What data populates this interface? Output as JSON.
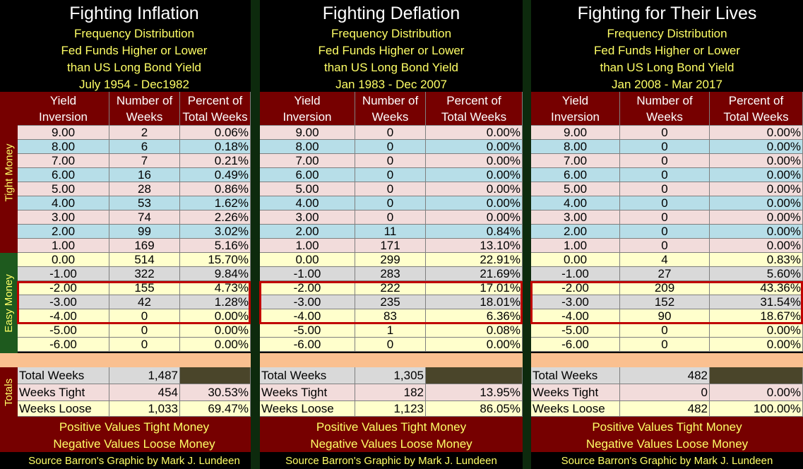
{
  "side_labels": {
    "tight": "Tight Money",
    "easy": "Easy Money",
    "totals": "Totals"
  },
  "panels": [
    {
      "title": "Fighting Inflation",
      "subtitle": [
        "Frequency Distribution",
        "Fed Funds Higher or Lower",
        "than US Long Bond Yield",
        "July 1954 - Dec1982"
      ],
      "headers": [
        [
          "Yield",
          "Inversion"
        ],
        [
          "Number of",
          "Weeks"
        ],
        [
          "Percent of",
          "Total Weeks"
        ]
      ],
      "rows": [
        [
          "9.00",
          "2",
          "0.06%"
        ],
        [
          "8.00",
          "6",
          "0.18%"
        ],
        [
          "7.00",
          "7",
          "0.21%"
        ],
        [
          "6.00",
          "16",
          "0.49%"
        ],
        [
          "5.00",
          "28",
          "0.86%"
        ],
        [
          "4.00",
          "53",
          "1.62%"
        ],
        [
          "3.00",
          "74",
          "2.26%"
        ],
        [
          "2.00",
          "99",
          "3.02%"
        ],
        [
          "1.00",
          "169",
          "5.16%"
        ],
        [
          "0.00",
          "514",
          "15.70%"
        ],
        [
          "-1.00",
          "322",
          "9.84%"
        ],
        [
          "-2.00",
          "155",
          "4.73%"
        ],
        [
          "-3.00",
          "42",
          "1.28%"
        ],
        [
          "-4.00",
          "0",
          "0.00%"
        ],
        [
          "-5.00",
          "0",
          "0.00%"
        ],
        [
          "-6.00",
          "0",
          "0.00%"
        ]
      ],
      "totals": [
        [
          "Total Weeks",
          "1,487"
        ],
        [
          "Weeks Tight",
          "454",
          "30.53%"
        ],
        [
          "Weeks Loose",
          "1,033",
          "69.47%"
        ]
      ],
      "footer": [
        "Positive Values Tight Money",
        "Negative Values Loose Money"
      ],
      "source": "Source Barron's  Graphic by Mark J. Lundeen"
    },
    {
      "title": "Fighting Deflation",
      "subtitle": [
        "Frequency Distribution",
        "Fed Funds Higher or Lower",
        "than US Long Bond Yield",
        "Jan 1983 - Dec 2007"
      ],
      "headers": [
        [
          "Yield",
          "Inversion"
        ],
        [
          "Number of",
          "Weeks"
        ],
        [
          "Percent of",
          "Total Weeks"
        ]
      ],
      "rows": [
        [
          "9.00",
          "0",
          "0.00%"
        ],
        [
          "8.00",
          "0",
          "0.00%"
        ],
        [
          "7.00",
          "0",
          "0.00%"
        ],
        [
          "6.00",
          "0",
          "0.00%"
        ],
        [
          "5.00",
          "0",
          "0.00%"
        ],
        [
          "4.00",
          "0",
          "0.00%"
        ],
        [
          "3.00",
          "0",
          "0.00%"
        ],
        [
          "2.00",
          "11",
          "0.84%"
        ],
        [
          "1.00",
          "171",
          "13.10%"
        ],
        [
          "0.00",
          "299",
          "22.91%"
        ],
        [
          "-1.00",
          "283",
          "21.69%"
        ],
        [
          "-2.00",
          "222",
          "17.01%"
        ],
        [
          "-3.00",
          "235",
          "18.01%"
        ],
        [
          "-4.00",
          "83",
          "6.36%"
        ],
        [
          "-5.00",
          "1",
          "0.08%"
        ],
        [
          "-6.00",
          "0",
          "0.00%"
        ]
      ],
      "totals": [
        [
          "Total Weeks",
          "1,305"
        ],
        [
          "Weeks Tight",
          "182",
          "13.95%"
        ],
        [
          "Weeks Loose",
          "1,123",
          "86.05%"
        ]
      ],
      "footer": [
        "Positive Values Tight Money",
        "Negative Values Loose Money"
      ],
      "source": "Source Barron's  Graphic by Mark J. Lundeen"
    },
    {
      "title": "Fighting for Their Lives",
      "subtitle": [
        "Frequency Distribution",
        "Fed Funds Higher or Lower",
        "than US Long Bond Yield",
        "Jan 2008 - Mar 2017"
      ],
      "headers": [
        [
          "Yield",
          "Inversion"
        ],
        [
          "Number of",
          "Weeks"
        ],
        [
          "Percent of",
          "Total Weeks"
        ]
      ],
      "rows": [
        [
          "9.00",
          "0",
          "0.00%"
        ],
        [
          "8.00",
          "0",
          "0.00%"
        ],
        [
          "7.00",
          "0",
          "0.00%"
        ],
        [
          "6.00",
          "0",
          "0.00%"
        ],
        [
          "5.00",
          "0",
          "0.00%"
        ],
        [
          "4.00",
          "0",
          "0.00%"
        ],
        [
          "3.00",
          "0",
          "0.00%"
        ],
        [
          "2.00",
          "0",
          "0.00%"
        ],
        [
          "1.00",
          "0",
          "0.00%"
        ],
        [
          "0.00",
          "4",
          "0.83%"
        ],
        [
          "-1.00",
          "27",
          "5.60%"
        ],
        [
          "-2.00",
          "209",
          "43.36%"
        ],
        [
          "-3.00",
          "152",
          "31.54%"
        ],
        [
          "-4.00",
          "90",
          "18.67%"
        ],
        [
          "-5.00",
          "0",
          "0.00%"
        ],
        [
          "-6.00",
          "0",
          "0.00%"
        ]
      ],
      "totals": [
        [
          "Total Weeks",
          "482"
        ],
        [
          "Weeks Tight",
          "0",
          "0.00%"
        ],
        [
          "Weeks Loose",
          "482",
          "100.00%"
        ]
      ],
      "footer": [
        "Positive Values Tight Money",
        "Negative Values Loose Money"
      ],
      "source": "Source Barron's  Graphic by Mark J. Lundeen"
    }
  ]
}
